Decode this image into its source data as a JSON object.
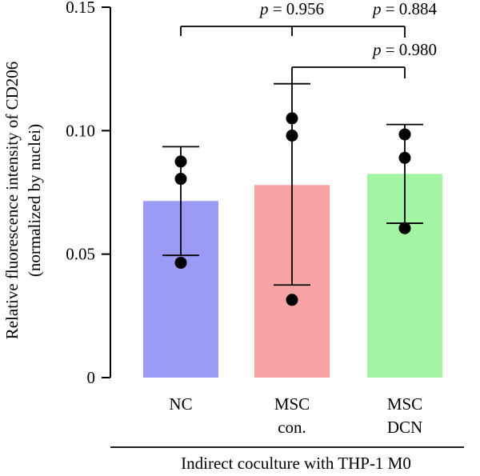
{
  "chart_data": {
    "type": "bar",
    "ylabel_lines": [
      "Relative fluorescence intensity of CD206",
      "(normalized by nuclei)"
    ],
    "ylim": [
      0,
      0.15
    ],
    "yticks": [
      {
        "value": 0,
        "label": "0"
      },
      {
        "value": 0.05,
        "label": "0.05"
      },
      {
        "value": 0.1,
        "label": "0.10"
      },
      {
        "value": 0.15,
        "label": "0.15"
      }
    ],
    "categories": [
      {
        "lines": [
          "NC"
        ]
      },
      {
        "lines": [
          "MSC",
          "con."
        ]
      },
      {
        "lines": [
          "MSC",
          "DCN"
        ]
      }
    ],
    "values": [
      0.0715,
      0.078,
      0.0825
    ],
    "error_bars": [
      {
        "low": 0.0495,
        "high": 0.0935
      },
      {
        "low": 0.0375,
        "high": 0.119
      },
      {
        "low": 0.0625,
        "high": 0.1025
      }
    ],
    "points": [
      [
        0.0875,
        0.0805,
        0.0465
      ],
      [
        0.105,
        0.098,
        0.0315
      ],
      [
        0.0985,
        0.089,
        0.0605
      ]
    ],
    "colors": [
      "#9b9bf5",
      "#f7a3a3",
      "#a3f5a3"
    ],
    "comparisons": [
      {
        "from": 0,
        "to": 1,
        "p_value": "0.956"
      },
      {
        "from": 0,
        "to": 2,
        "p_value": "0.884"
      },
      {
        "from": 1,
        "to": 2,
        "p_value": "0.980"
      }
    ],
    "p_prefix": "p",
    "p_equals": " = ",
    "group_label": "Indirect coculture with THP-1 M0",
    "grid": false,
    "legend": "none"
  }
}
